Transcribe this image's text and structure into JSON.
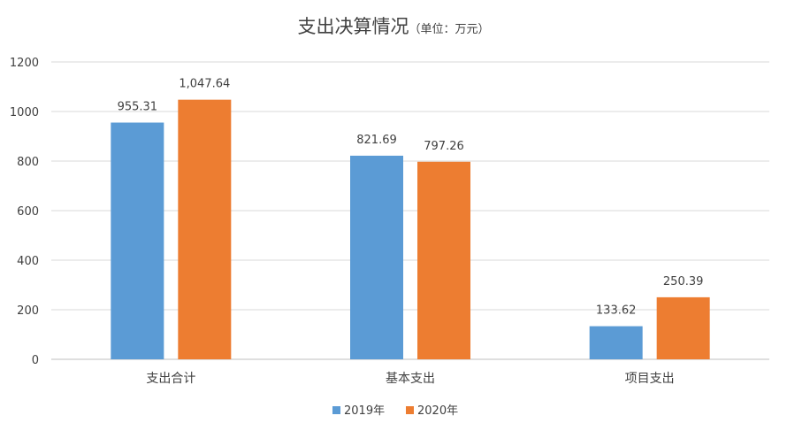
{
  "chart_data": {
    "type": "bar",
    "title": "支出决算情况",
    "subtitle": "（单位：万元）",
    "categories": [
      "支出合计",
      "基本支出",
      "项目支出"
    ],
    "series": [
      {
        "name": "2019年",
        "color": "#5b9bd5",
        "values": [
          955.31,
          821.69,
          133.62
        ],
        "labels": [
          "955.31",
          "821.69",
          "133.62"
        ]
      },
      {
        "name": "2020年",
        "color": "#ed7d31",
        "values": [
          1047.64,
          797.26,
          250.39
        ],
        "labels": [
          "1,047.64",
          "797.26",
          "250.39"
        ]
      }
    ],
    "yticks": [
      "0",
      "200",
      "400",
      "600",
      "800",
      "1000",
      "1200"
    ],
    "ylim": [
      0,
      1200
    ],
    "grid": true,
    "legend": "bottom"
  }
}
